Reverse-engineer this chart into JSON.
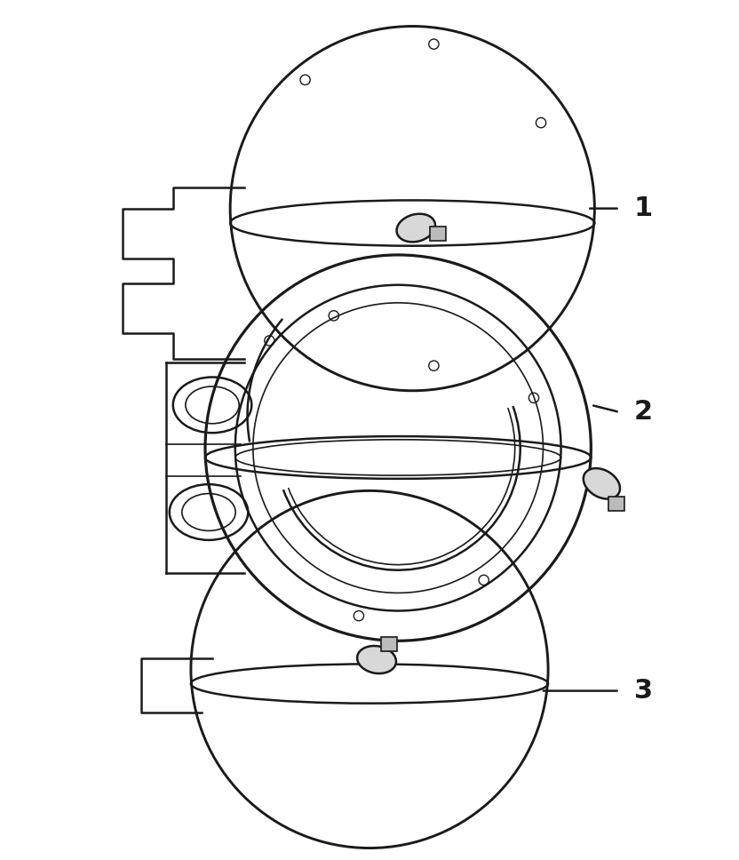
{
  "bg_color": "#ffffff",
  "line_color": "#1a1a1a",
  "line_width": 1.8,
  "label_1": "1",
  "label_2": "2",
  "label_3": "3",
  "label_fontsize": 22,
  "figsize": [
    8.32,
    9.68
  ],
  "dpi": 100
}
